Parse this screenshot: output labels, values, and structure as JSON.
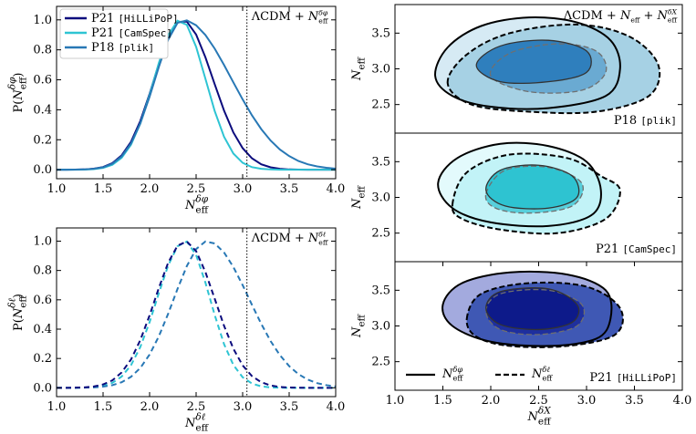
{
  "chart_data": [
    {
      "type": "line",
      "ylabel": [
        "P(",
        {
          "base": "N",
          "sub": "eff",
          "sup": "δφ"
        },
        ")"
      ],
      "xlabel": {
        "base": "N",
        "sub": "eff",
        "sup": "δφ"
      },
      "annotation": [
        "ΛCDM + ",
        {
          "base": "N",
          "sub": "eff",
          "sup": "δφ"
        }
      ],
      "reference_x": 3.046,
      "legend": "upper left",
      "xlim": [
        1,
        4
      ],
      "xticks": [
        {
          "value": 1,
          "label": "1.0"
        },
        1.5,
        {
          "value": 2,
          "label": "2.0"
        },
        2.5,
        {
          "value": 3,
          "label": "3.0"
        },
        3.5,
        {
          "value": 4,
          "label": "4.0"
        }
      ],
      "ylim": [
        -0.06,
        1.09
      ],
      "yticks": [
        {
          "value": 0,
          "label": "0.0"
        },
        0.2,
        0.4,
        0.6,
        0.8,
        {
          "value": 1,
          "label": "1.0"
        }
      ],
      "x": [
        1,
        1.1,
        1.2,
        1.3,
        1.4,
        1.5,
        1.6,
        1.7,
        1.8,
        1.9,
        2,
        2.1,
        2.2,
        2.3,
        2.4,
        2.5,
        2.6,
        2.7,
        2.8,
        2.9,
        3,
        3.1,
        3.2,
        3.3,
        3.4,
        3.5,
        3.6,
        3.7,
        3.8,
        3.9,
        4
      ],
      "series": [
        {
          "name": "P21 [HiLLiPoP]",
          "color": "#0b0b7d",
          "values": [
            0,
            0,
            0.001,
            0.002,
            0.007,
            0.018,
            0.044,
            0.096,
            0.186,
            0.325,
            0.506,
            0.707,
            0.882,
            0.986,
            0.989,
            0.902,
            0.75,
            0.57,
            0.395,
            0.249,
            0.144,
            0.076,
            0.036,
            0.016,
            0.006,
            0.002,
            0.001,
            0,
            0,
            0,
            0
          ]
        },
        {
          "name": "P21 [CamSpec]",
          "color": "#2ec4d3",
          "values": [
            0,
            0,
            0,
            0.001,
            0.004,
            0.012,
            0.033,
            0.08,
            0.167,
            0.308,
            0.499,
            0.714,
            0.898,
            0.994,
            0.967,
            0.82,
            0.607,
            0.391,
            0.22,
            0.108,
            0.046,
            0.017,
            0.006,
            0.002,
            0,
            0,
            0,
            0,
            0,
            0,
            0
          ]
        },
        {
          "name": "P18 [plik]",
          "color": "#2878b5",
          "values": [
            0,
            0,
            0.001,
            0.002,
            0.006,
            0.016,
            0.04,
            0.089,
            0.175,
            0.309,
            0.487,
            0.687,
            0.868,
            0.98,
            0.997,
            0.964,
            0.899,
            0.808,
            0.699,
            0.583,
            0.469,
            0.363,
            0.271,
            0.195,
            0.135,
            0.091,
            0.058,
            0.036,
            0.022,
            0.013,
            0.007
          ]
        }
      ]
    },
    {
      "type": "line",
      "ylabel": [
        "P(",
        {
          "base": "N",
          "sub": "eff",
          "sup": "δℓ"
        },
        ")"
      ],
      "xlabel": {
        "base": "N",
        "sub": "eff",
        "sup": "δℓ"
      },
      "annotation": [
        "ΛCDM + ",
        {
          "base": "N",
          "sub": "eff",
          "sup": "δℓ"
        }
      ],
      "reference_x": 3.046,
      "xlim": [
        1,
        4
      ],
      "xticks": [
        {
          "value": 1,
          "label": "1.0"
        },
        1.5,
        {
          "value": 2,
          "label": "2.0"
        },
        2.5,
        {
          "value": 3,
          "label": "3.0"
        },
        3.5,
        {
          "value": 4,
          "label": "4.0"
        }
      ],
      "ylim": [
        -0.06,
        1.09
      ],
      "yticks": [
        {
          "value": 0,
          "label": "0.0"
        },
        0.2,
        0.4,
        0.6,
        0.8,
        {
          "value": 1,
          "label": "1.0"
        }
      ],
      "x": [
        1,
        1.1,
        1.2,
        1.3,
        1.4,
        1.5,
        1.6,
        1.7,
        1.8,
        1.9,
        2,
        2.1,
        2.2,
        2.3,
        2.4,
        2.5,
        2.6,
        2.7,
        2.8,
        2.9,
        3,
        3.1,
        3.2,
        3.3,
        3.4,
        3.5,
        3.6,
        3.7,
        3.8,
        3.9,
        4
      ],
      "series": [
        {
          "color": "#2ec4d3",
          "dash": true,
          "values": [
            0,
            0,
            0,
            0.002,
            0.005,
            0.014,
            0.034,
            0.077,
            0.154,
            0.278,
            0.448,
            0.647,
            0.835,
            0.965,
            0.997,
            0.906,
            0.717,
            0.496,
            0.298,
            0.156,
            0.072,
            0.029,
            0.01,
            0.003,
            0.001,
            0,
            0,
            0,
            0,
            0,
            0
          ]
        },
        {
          "color": "#2878b5",
          "dash": true,
          "values": [
            0,
            0,
            0,
            0.001,
            0.003,
            0.008,
            0.018,
            0.038,
            0.075,
            0.135,
            0.227,
            0.352,
            0.506,
            0.674,
            0.83,
            0.946,
            0.998,
            0.984,
            0.923,
            0.824,
            0.7,
            0.566,
            0.436,
            0.319,
            0.223,
            0.148,
            0.093,
            0.056,
            0.032,
            0.018,
            0.009
          ]
        },
        {
          "color": "#0b0b7d",
          "dash": true,
          "values": [
            0,
            0,
            0.001,
            0.003,
            0.009,
            0.023,
            0.051,
            0.105,
            0.193,
            0.325,
            0.494,
            0.682,
            0.854,
            0.969,
            0.998,
            0.932,
            0.789,
            0.607,
            0.423,
            0.267,
            0.153,
            0.08,
            0.038,
            0.016,
            0.006,
            0.002,
            0.001,
            0,
            0,
            0,
            0
          ]
        }
      ]
    },
    {
      "type": "contour",
      "annotation": [
        "ΛCDM + ",
        {
          "base": "N",
          "sub": "eff"
        },
        " + ",
        {
          "base": "N",
          "sub": "eff",
          "sup": "δX"
        }
      ],
      "label": "P18 [plik]",
      "ylabel": {
        "base": "N",
        "sub": "eff"
      },
      "xlim": [
        1,
        4
      ],
      "ylim": [
        2.1,
        3.9
      ],
      "yticks": [
        2.5,
        {
          "value": 3,
          "label": "3.0"
        },
        3.5
      ],
      "contours": [
        {
          "line": "solid",
          "fill": "#d6eaf4",
          "edge": "#000000",
          "x": [
            1.42,
            1.55,
            1.9,
            2.4,
            2.9,
            3.25,
            3.35,
            3.2,
            2.6,
            2.0,
            1.6
          ],
          "y": [
            2.9,
            3.3,
            3.6,
            3.72,
            3.65,
            3.4,
            3.0,
            2.62,
            2.45,
            2.47,
            2.62
          ]
        },
        {
          "line": "dashed",
          "fill": "#a6d1e4",
          "edge": "#000000",
          "x": [
            1.55,
            1.75,
            2.2,
            2.9,
            3.45,
            3.75,
            3.65,
            3.1,
            2.4,
            1.8
          ],
          "y": [
            2.8,
            3.2,
            3.5,
            3.62,
            3.45,
            3.05,
            2.62,
            2.4,
            2.4,
            2.5
          ]
        },
        {
          "line": "dashed",
          "fill": "#6aaad2",
          "edge": "#6f6f6f",
          "x": [
            2.0,
            2.2,
            2.7,
            3.1,
            3.2,
            2.95,
            2.4
          ],
          "y": [
            2.9,
            3.22,
            3.35,
            3.25,
            2.95,
            2.7,
            2.68
          ]
        },
        {
          "line": "solid",
          "fill": "#2f7fbd",
          "edge": "#333333",
          "x": [
            1.85,
            2.1,
            2.6,
            3.0,
            3.0,
            2.6,
            2.1
          ],
          "y": [
            3.05,
            3.32,
            3.4,
            3.25,
            2.95,
            2.82,
            2.82
          ]
        }
      ]
    },
    {
      "type": "contour",
      "label": "P21 [CamSpec]",
      "ylabel": {
        "base": "N",
        "sub": "eff"
      },
      "xlim": [
        1,
        4
      ],
      "ylim": [
        2.1,
        3.9
      ],
      "yticks": [
        2.5,
        {
          "value": 3,
          "label": "3.0"
        },
        3.5
      ],
      "contours": [
        {
          "line": "solid",
          "fill": "#e3fafc",
          "edge": "#000000",
          "x": [
            1.45,
            1.65,
            2.1,
            2.6,
            3.0,
            3.15,
            3.05,
            2.6,
            2.0,
            1.6
          ],
          "y": [
            3.2,
            3.55,
            3.75,
            3.72,
            3.5,
            3.1,
            2.75,
            2.6,
            2.65,
            2.85
          ]
        },
        {
          "line": "dashed",
          "fill": "#c2f3f7",
          "edge": "#000000",
          "x": [
            1.6,
            1.75,
            2.2,
            2.8,
            3.15,
            3.35,
            3.2,
            2.7,
            2.1,
            1.7
          ],
          "y": [
            2.9,
            3.35,
            3.6,
            3.55,
            3.3,
            3.1,
            2.7,
            2.5,
            2.55,
            2.7
          ]
        },
        {
          "line": "dashed",
          "fill": "#58cfdb",
          "edge": "#6f6f6f",
          "x": [
            1.95,
            2.15,
            2.6,
            2.95,
            2.85,
            2.4,
            2.05
          ],
          "y": [
            3.05,
            3.38,
            3.42,
            3.2,
            2.88,
            2.78,
            2.85
          ]
        },
        {
          "line": "solid",
          "fill": "#2ec3d1",
          "edge": "#333333",
          "x": [
            1.95,
            2.1,
            2.5,
            2.85,
            2.9,
            2.6,
            2.15
          ],
          "y": [
            3.1,
            3.38,
            3.45,
            3.3,
            3.0,
            2.85,
            2.88
          ]
        }
      ]
    },
    {
      "type": "contour",
      "label": "P21 [HiLLiPoP]",
      "ylabel": {
        "base": "N",
        "sub": "eff"
      },
      "xlabel": {
        "base": "N",
        "sub": "eff",
        "sup": "δX"
      },
      "xlim": [
        1,
        4
      ],
      "ylim": [
        2.1,
        3.9
      ],
      "xticks": [
        {
          "value": 1,
          "label": "1.0"
        },
        1.5,
        {
          "value": 2,
          "label": "2.0"
        },
        2.5,
        {
          "value": 3,
          "label": "3.0"
        },
        3.5,
        {
          "value": 4,
          "label": "4.0"
        }
      ],
      "yticks": [
        2.5,
        {
          "value": 3,
          "label": "3.0"
        },
        3.5
      ],
      "legend": [
        {
          "label": {
            "base": "N",
            "sub": "eff",
            "sup": "δφ"
          },
          "line": "solid"
        },
        {
          "label": {
            "base": "N",
            "sub": "eff",
            "sup": "δℓ"
          },
          "line": "dashed"
        }
      ],
      "contours": [
        {
          "line": "solid",
          "fill": "#a3aade",
          "edge": "#000000",
          "x": [
            1.5,
            1.7,
            2.2,
            2.8,
            3.2,
            3.25,
            3.1,
            2.6,
            2.0,
            1.6
          ],
          "y": [
            3.3,
            3.6,
            3.75,
            3.72,
            3.5,
            3.1,
            2.82,
            2.72,
            2.78,
            3.0
          ]
        },
        {
          "line": "dashed",
          "fill": "#3f58b4",
          "edge": "#000000",
          "x": [
            1.75,
            1.9,
            2.4,
            3.0,
            3.35,
            3.3,
            2.8,
            2.2,
            1.85
          ],
          "y": [
            3.1,
            3.45,
            3.6,
            3.55,
            3.25,
            2.88,
            2.72,
            2.72,
            2.85
          ]
        },
        {
          "line": "dashed",
          "fill": "#1e2f9e",
          "edge": "#6f6f6f",
          "x": [
            1.95,
            2.1,
            2.6,
            2.95,
            2.9,
            2.5,
            2.1
          ],
          "y": [
            3.2,
            3.45,
            3.5,
            3.3,
            3.0,
            2.88,
            2.95
          ]
        },
        {
          "line": "solid",
          "fill": "#0d1a8a",
          "edge": "#333333",
          "x": [
            1.95,
            2.1,
            2.6,
            2.9,
            2.85,
            2.5,
            2.1
          ],
          "y": [
            3.25,
            3.48,
            3.52,
            3.3,
            3.05,
            2.95,
            3.02
          ]
        }
      ]
    }
  ]
}
